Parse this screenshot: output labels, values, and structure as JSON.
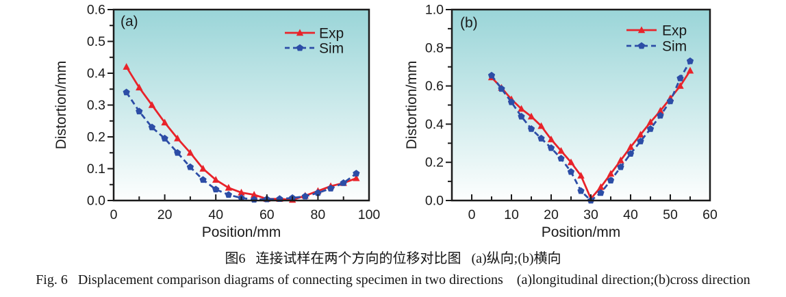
{
  "figure": {
    "caption_zh": "图6   连接试样在两个方向的位移对比图   (a)纵向;(b)横向",
    "caption_en": "Fig. 6   Displacement comparison diagrams of connecting specimen in two directions    (a)longitudinal direction;(b)cross direction"
  },
  "colors": {
    "exp": "#e8232a",
    "sim": "#2c4da6",
    "axis": "#1a1a1a",
    "plot_gradient": [
      "#9ad5d8",
      "#e9f6f6",
      "#fdfefe"
    ]
  },
  "chart_data": [
    {
      "type": "line",
      "panel_label": "(a)",
      "xlabel": "Position/mm",
      "ylabel": "Distortion/mm",
      "xlim": [
        0,
        100
      ],
      "ylim": [
        0,
        0.6
      ],
      "x_major_ticks": [
        0,
        20,
        40,
        60,
        80,
        100
      ],
      "x_minor_ticks": [
        10,
        30,
        50,
        70,
        90
      ],
      "y_major_ticks": [
        0.0,
        0.1,
        0.2,
        0.3,
        0.4,
        0.5,
        0.6
      ],
      "y_minor_ticks": [
        0.05,
        0.15,
        0.25,
        0.35,
        0.45,
        0.55
      ],
      "y_decimals": 1,
      "legend_position": "top-right",
      "series": [
        {
          "name": "Exp",
          "marker": "triangle",
          "line_style": "solid",
          "color_key": "exp",
          "x": [
            5,
            10,
            15,
            20,
            25,
            30,
            35,
            40,
            45,
            50,
            55,
            60,
            65,
            70,
            75,
            80,
            85,
            90,
            95
          ],
          "y": [
            0.42,
            0.355,
            0.3,
            0.245,
            0.195,
            0.15,
            0.1,
            0.065,
            0.04,
            0.025,
            0.018,
            0.005,
            0.005,
            0.002,
            0.015,
            0.03,
            0.045,
            0.055,
            0.07
          ]
        },
        {
          "name": "Sim",
          "marker": "pentagon",
          "line_style": "dashed",
          "color_key": "sim",
          "x": [
            5,
            10,
            15,
            20,
            25,
            30,
            35,
            40,
            45,
            50,
            55,
            60,
            65,
            70,
            75,
            80,
            85,
            90,
            95
          ],
          "y": [
            0.34,
            0.28,
            0.23,
            0.195,
            0.15,
            0.105,
            0.065,
            0.035,
            0.018,
            0.008,
            0.003,
            0.004,
            0.005,
            0.008,
            0.013,
            0.024,
            0.038,
            0.055,
            0.085
          ]
        }
      ]
    },
    {
      "type": "line",
      "panel_label": "(b)",
      "xlabel": "Position/mm",
      "ylabel": "Distortion/mm",
      "xlim": [
        -5,
        60
      ],
      "ylim": [
        0,
        1.0
      ],
      "x_major_ticks": [
        0,
        10,
        20,
        30,
        40,
        50,
        60
      ],
      "x_minor_ticks": [
        5,
        15,
        25,
        35,
        45,
        55
      ],
      "y_major_ticks": [
        0.0,
        0.2,
        0.4,
        0.6,
        0.8,
        1.0
      ],
      "y_minor_ticks": [
        0.1,
        0.3,
        0.5,
        0.7,
        0.9
      ],
      "y_decimals": 1,
      "legend_position": "top-right",
      "series": [
        {
          "name": "Exp",
          "marker": "triangle",
          "line_style": "solid",
          "color_key": "exp",
          "x": [
            5,
            7.5,
            10,
            12.5,
            15,
            17.5,
            20,
            22.5,
            25,
            27.5,
            30,
            32.5,
            35,
            37.5,
            40,
            42.5,
            45,
            47.5,
            50,
            52.5,
            55
          ],
          "y": [
            0.645,
            0.59,
            0.53,
            0.48,
            0.44,
            0.39,
            0.32,
            0.26,
            0.2,
            0.13,
            0.01,
            0.07,
            0.14,
            0.21,
            0.28,
            0.345,
            0.41,
            0.47,
            0.535,
            0.6,
            0.68
          ]
        },
        {
          "name": "Sim",
          "marker": "pentagon",
          "line_style": "dashed",
          "color_key": "sim",
          "x": [
            5,
            7.5,
            10,
            12.5,
            15,
            17.5,
            20,
            22.5,
            25,
            27.5,
            30,
            32.5,
            35,
            37.5,
            40,
            42.5,
            45,
            47.5,
            50,
            52.5,
            55
          ],
          "y": [
            0.655,
            0.585,
            0.515,
            0.44,
            0.375,
            0.325,
            0.275,
            0.22,
            0.15,
            0.05,
            0.0,
            0.04,
            0.105,
            0.175,
            0.245,
            0.31,
            0.375,
            0.445,
            0.52,
            0.64,
            0.73
          ]
        }
      ]
    }
  ]
}
